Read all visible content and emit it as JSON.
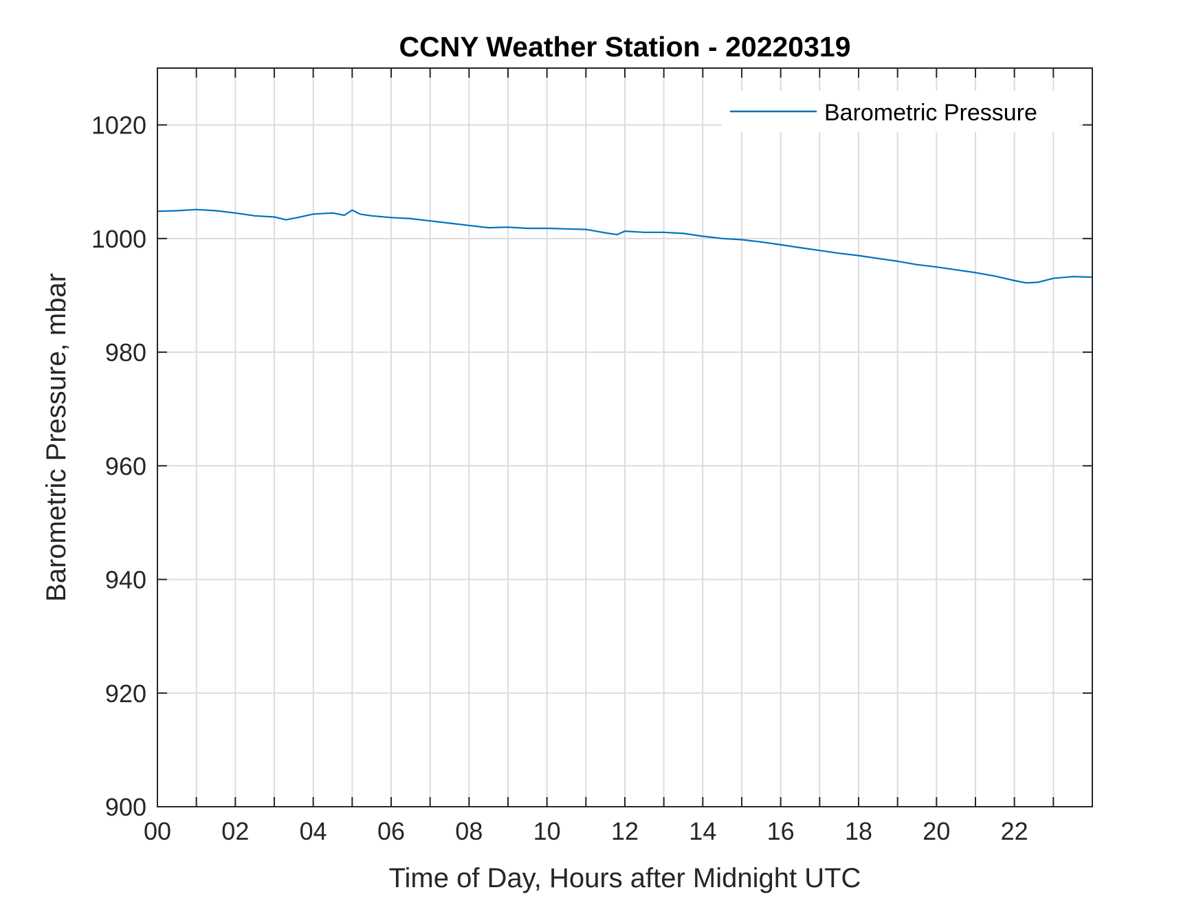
{
  "chart_data": {
    "type": "line",
    "title": "CCNY Weather Station - 20220319",
    "xlabel": "Time of Day, Hours after Midnight UTC",
    "ylabel": "Barometric Pressure, mbar",
    "xlim": [
      0,
      24
    ],
    "ylim": [
      900,
      1030
    ],
    "x_ticks": [
      0,
      2,
      4,
      6,
      8,
      10,
      12,
      14,
      16,
      18,
      20,
      22
    ],
    "x_tick_labels": [
      "00",
      "02",
      "04",
      "06",
      "08",
      "10",
      "12",
      "14",
      "16",
      "18",
      "20",
      "22"
    ],
    "x_minor_grid": [
      1,
      3,
      5,
      7,
      9,
      11,
      13,
      15,
      17,
      19,
      21,
      23
    ],
    "y_ticks": [
      900,
      920,
      940,
      960,
      980,
      1000,
      1020
    ],
    "y_tick_labels": [
      "900",
      "920",
      "940",
      "960",
      "980",
      "1000",
      "1020"
    ],
    "grid": true,
    "legend_position": "top-right",
    "series": [
      {
        "name": "Barometric Pressure",
        "color": "#0072BD",
        "x": [
          0,
          0.5,
          1,
          1.5,
          2,
          2.5,
          3,
          3.3,
          3.6,
          4,
          4.5,
          4.8,
          5,
          5.2,
          5.5,
          6,
          6.5,
          7,
          7.5,
          8,
          8.5,
          9,
          9.5,
          10,
          10.5,
          11,
          11.5,
          11.8,
          12,
          12.5,
          13,
          13.5,
          14,
          14.5,
          15,
          15.5,
          16,
          16.5,
          17,
          17.5,
          18,
          18.5,
          19,
          19.5,
          20,
          20.5,
          21,
          21.5,
          22,
          22.3,
          22.6,
          23,
          23.5,
          24
        ],
        "values": [
          1004.8,
          1004.9,
          1005.1,
          1004.9,
          1004.5,
          1004.0,
          1003.8,
          1003.3,
          1003.7,
          1004.3,
          1004.5,
          1004.1,
          1005.0,
          1004.3,
          1004.0,
          1003.7,
          1003.5,
          1003.1,
          1002.7,
          1002.3,
          1001.9,
          1002.0,
          1001.8,
          1001.8,
          1001.7,
          1001.6,
          1001.0,
          1000.7,
          1001.3,
          1001.1,
          1001.1,
          1000.9,
          1000.4,
          1000.0,
          999.8,
          999.4,
          998.9,
          998.4,
          997.9,
          997.4,
          997.0,
          996.5,
          996.0,
          995.4,
          995.0,
          994.5,
          994.0,
          993.4,
          992.6,
          992.2,
          992.3,
          993.0,
          993.3,
          993.2
        ]
      }
    ]
  }
}
